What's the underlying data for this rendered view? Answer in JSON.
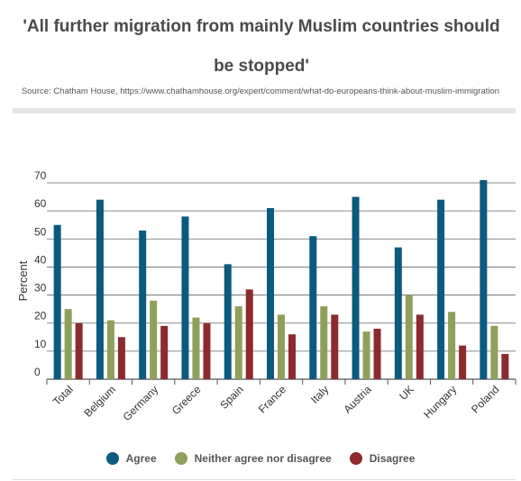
{
  "title": "'All further migration from mainly Muslim countries should be stopped'",
  "source": "Source: Chatham House, https://www.chathamhouse.org/expert/comment/what-do-europeans-think-about-muslim-immigration",
  "colors": {
    "agree": "#0b5a80",
    "neither": "#8fa05a",
    "disagree": "#8c2a2e"
  },
  "chart_data": {
    "type": "bar",
    "title": "'All further migration from mainly Muslim countries should be stopped'",
    "xlabel": "",
    "ylabel": "Percent",
    "ylim": [
      0,
      70
    ],
    "yticks": [
      "0",
      "10",
      "20",
      "30",
      "40",
      "50",
      "60",
      "70"
    ],
    "grid": true,
    "legend_position": "bottom",
    "categories": [
      "Total",
      "Belgium",
      "Germany",
      "Greece",
      "Spain",
      "France",
      "Italy",
      "Austria",
      "UK",
      "Hungary",
      "Poland"
    ],
    "series": [
      {
        "name": "Agree",
        "values": [
          55,
          64,
          53,
          58,
          41,
          61,
          51,
          65,
          47,
          64,
          71
        ]
      },
      {
        "name": "Neither agree nor disagree",
        "values": [
          25,
          21,
          28,
          22,
          26,
          23,
          26,
          17,
          30,
          24,
          19
        ]
      },
      {
        "name": "Disagree",
        "values": [
          20,
          15,
          19,
          20,
          32,
          16,
          23,
          18,
          23,
          12,
          9
        ]
      }
    ]
  }
}
